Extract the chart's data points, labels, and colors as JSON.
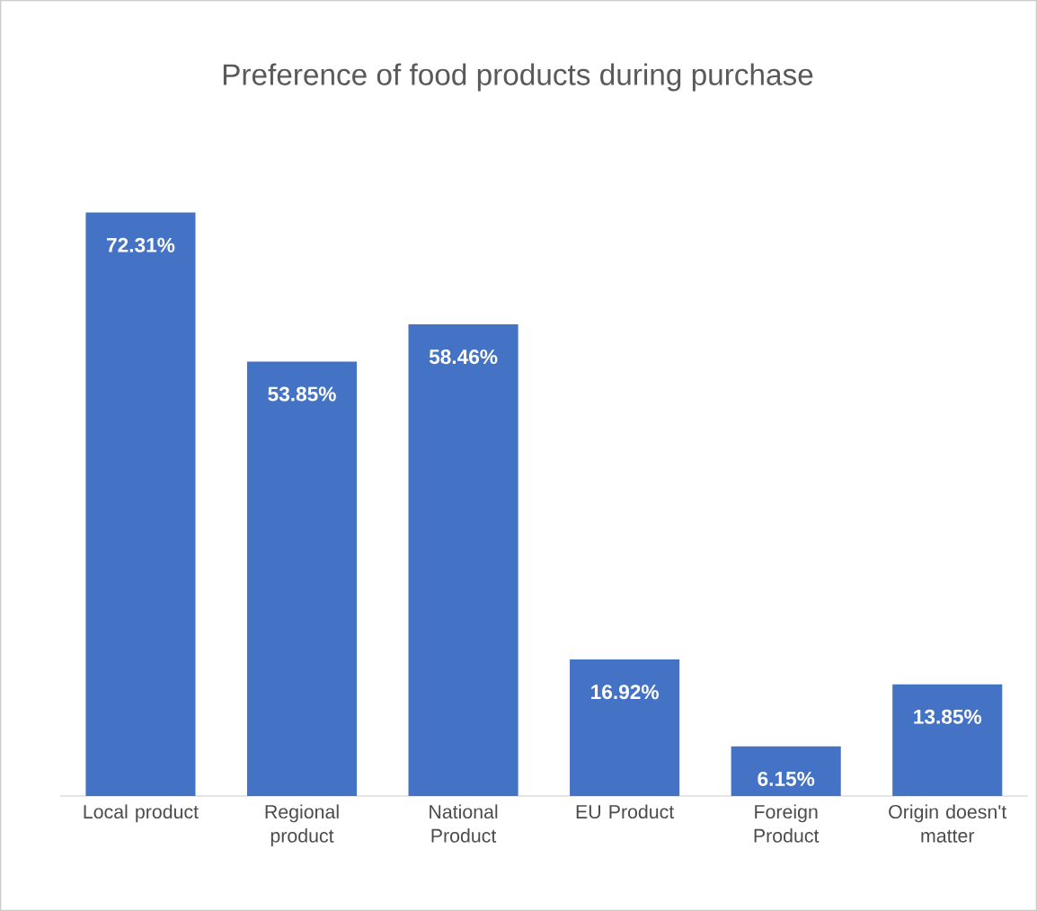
{
  "chart_data": {
    "type": "bar",
    "title": "Preference of food products during purchase",
    "categories": [
      "Local product",
      "Regional product",
      "National Product",
      "EU Product",
      "Foreign Product",
      "Origin doesn't matter"
    ],
    "values": [
      72.31,
      53.85,
      58.46,
      16.92,
      6.15,
      13.85
    ],
    "value_labels": [
      "72.31%",
      "53.85%",
      "58.46%",
      "16.92%",
      "6.15%",
      "13.85%"
    ],
    "color": "#4472c4",
    "tick_labels": "x"
  }
}
